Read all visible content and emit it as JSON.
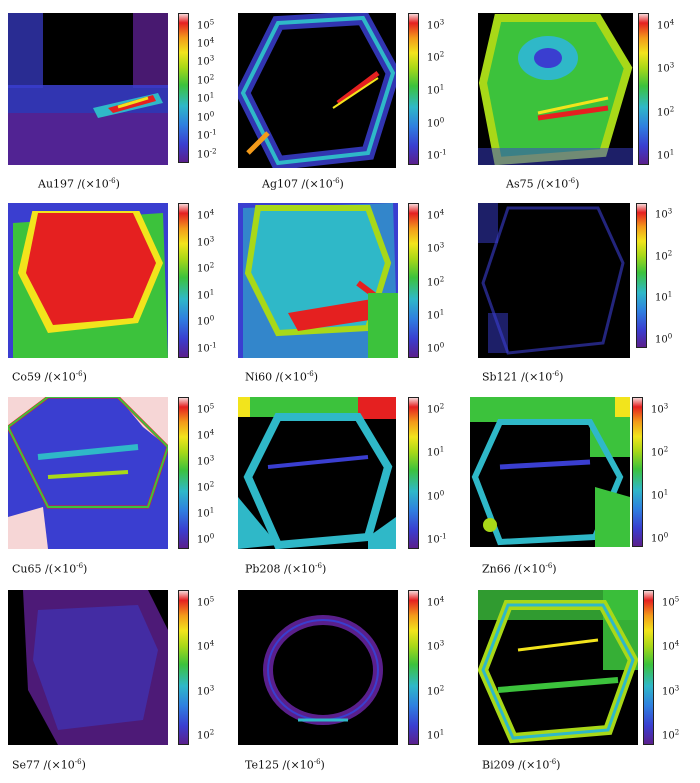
{
  "panels": [
    {
      "element": "Au197",
      "unit": "/(×10",
      "exp": "-6",
      "close": ")",
      "ticks": [
        "5",
        "4",
        "3",
        "2",
        "1",
        "0",
        "-1",
        "-2"
      ]
    },
    {
      "element": "Ag107",
      "unit": "/(×10",
      "exp": "-6",
      "close": ")",
      "ticks": [
        "3",
        "2",
        "1",
        "0",
        "-1"
      ]
    },
    {
      "element": "As75",
      "unit": "/(×10",
      "exp": "-6",
      "close": ")",
      "ticks": [
        "4",
        "3",
        "2",
        "1"
      ]
    },
    {
      "element": "Co59",
      "unit": "/(×10",
      "exp": "-6",
      "close": ")",
      "ticks": [
        "4",
        "3",
        "2",
        "1",
        "0",
        "-1"
      ]
    },
    {
      "element": "Ni60",
      "unit": "/(×10",
      "exp": "-6",
      "close": ")",
      "ticks": [
        "4",
        "3",
        "2",
        "1",
        "0"
      ]
    },
    {
      "element": "Sb121",
      "unit": "/(×10",
      "exp": "-6",
      "close": ")",
      "ticks": [
        "3",
        "2",
        "1",
        "0"
      ]
    },
    {
      "element": "Cu65",
      "unit": "/(×10",
      "exp": "-6",
      "close": ")",
      "ticks": [
        "5",
        "4",
        "3",
        "2",
        "1",
        "0"
      ]
    },
    {
      "element": "Pb208",
      "unit": "/(×10",
      "exp": "-6",
      "close": ")",
      "ticks": [
        "2",
        "1",
        "0",
        "-1"
      ]
    },
    {
      "element": "Zn66",
      "unit": "/(×10",
      "exp": "-6",
      "close": ")",
      "ticks": [
        "3",
        "2",
        "1",
        "0"
      ]
    },
    {
      "element": "Se77",
      "unit": "/(×10",
      "exp": "-6",
      "close": ")",
      "ticks": [
        "5",
        "4",
        "3",
        "2"
      ]
    },
    {
      "element": "Te125",
      "unit": "/(×10",
      "exp": "-6",
      "close": ")",
      "ticks": [
        "4",
        "3",
        "2",
        "1"
      ]
    },
    {
      "element": "Bi209",
      "unit": "/(×10",
      "exp": "-6",
      "close": ")",
      "ticks": [
        "5",
        "4",
        "3",
        "2"
      ]
    }
  ],
  "tick_base": "10",
  "colormap": [
    "#5a1f8c",
    "#3a3ed0",
    "#2f7fe0",
    "#2fb8c8",
    "#3cc23c",
    "#a8d818",
    "#f2e41c",
    "#f39a1a",
    "#e52020"
  ]
}
